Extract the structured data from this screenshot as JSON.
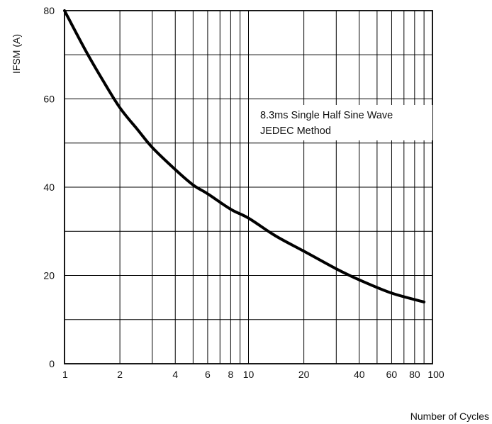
{
  "chart_data": {
    "type": "line",
    "title": "",
    "xlabel": "Number of Cycles",
    "ylabel": "IFSM (A)",
    "xscale": "log",
    "xlim": [
      1,
      100
    ],
    "ylim": [
      0,
      80
    ],
    "grid": true,
    "x_ticks": [
      1,
      2,
      4,
      6,
      8,
      10,
      20,
      40,
      60,
      80,
      100
    ],
    "x_tick_labels": [
      "1",
      "2",
      "4",
      "6",
      "8",
      "10",
      "20",
      "40",
      "60",
      "80",
      "100"
    ],
    "y_ticks": [
      0,
      20,
      40,
      60,
      80
    ],
    "y_tick_labels": [
      "0",
      "20",
      "40",
      "60",
      "80"
    ],
    "annotations": [
      "8.3ms Single Half Sine Wave",
      "JEDEC Method"
    ],
    "series": [
      {
        "x": [
          1,
          1.3,
          1.6,
          2,
          2.5,
          3,
          4,
          5,
          6,
          8,
          10,
          14,
          20,
          30,
          40,
          60,
          90
        ],
        "values": [
          80,
          71,
          64.5,
          58,
          53,
          49,
          44,
          40.5,
          38.5,
          35,
          33,
          29,
          25.5,
          21.5,
          19,
          16,
          14
        ]
      }
    ]
  }
}
